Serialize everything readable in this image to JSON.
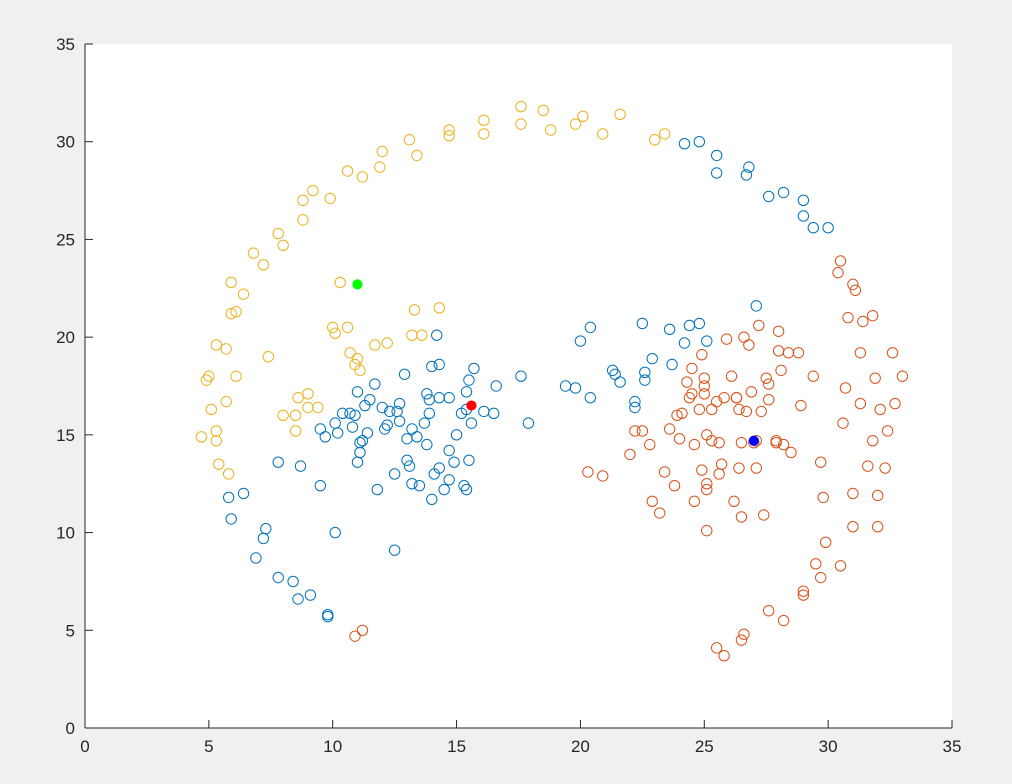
{
  "chart_data": {
    "type": "scatter",
    "title": "",
    "xlabel": "",
    "ylabel": "",
    "xlim": [
      0,
      35
    ],
    "ylim": [
      0,
      35
    ],
    "x_ticks": [
      0,
      5,
      10,
      15,
      20,
      25,
      30,
      35
    ],
    "y_ticks": [
      0,
      5,
      10,
      15,
      20,
      25,
      30,
      35
    ],
    "x_tick_labels": [
      "0",
      "5",
      "10",
      "15",
      "20",
      "25",
      "30",
      "35"
    ],
    "y_tick_labels": [
      "0",
      "5",
      "10",
      "15",
      "20",
      "25",
      "30",
      "35"
    ],
    "grid": false,
    "legend": "none",
    "series": [
      {
        "color": "#0072BD",
        "marker": "open-circle",
        "points": [
          [
            24.2,
            29.9
          ],
          [
            24.8,
            30.0
          ],
          [
            25.5,
            29.3
          ],
          [
            25.5,
            28.4
          ],
          [
            26.8,
            28.7
          ],
          [
            26.7,
            28.3
          ],
          [
            27.6,
            27.2
          ],
          [
            28.2,
            27.4
          ],
          [
            29.0,
            27.0
          ],
          [
            29.0,
            26.2
          ],
          [
            29.4,
            25.6
          ],
          [
            30.0,
            25.6
          ],
          [
            5.8,
            11.8
          ],
          [
            5.9,
            10.7
          ],
          [
            6.4,
            12.0
          ],
          [
            7.2,
            9.7
          ],
          [
            7.3,
            10.2
          ],
          [
            6.9,
            8.7
          ],
          [
            7.8,
            13.6
          ],
          [
            7.8,
            7.7
          ],
          [
            8.4,
            7.5
          ],
          [
            8.6,
            6.6
          ],
          [
            8.7,
            13.4
          ],
          [
            9.1,
            6.8
          ],
          [
            9.5,
            12.4
          ],
          [
            9.8,
            5.8
          ],
          [
            9.8,
            5.7
          ],
          [
            10.1,
            10.0
          ],
          [
            12.5,
            9.1
          ],
          [
            9.5,
            15.3
          ],
          [
            9.7,
            14.9
          ],
          [
            10.1,
            15.6
          ],
          [
            10.2,
            15.1
          ],
          [
            10.4,
            16.1
          ],
          [
            10.7,
            16.1
          ],
          [
            10.8,
            15.4
          ],
          [
            10.9,
            16.0
          ],
          [
            11.0,
            17.2
          ],
          [
            11.0,
            13.6
          ],
          [
            11.1,
            14.6
          ],
          [
            11.1,
            14.1
          ],
          [
            11.2,
            14.7
          ],
          [
            11.3,
            16.5
          ],
          [
            11.4,
            15.1
          ],
          [
            11.5,
            16.8
          ],
          [
            11.7,
            17.6
          ],
          [
            11.8,
            12.2
          ],
          [
            12.0,
            16.4
          ],
          [
            12.1,
            15.3
          ],
          [
            12.2,
            15.5
          ],
          [
            12.3,
            16.2
          ],
          [
            12.5,
            13.0
          ],
          [
            12.6,
            16.2
          ],
          [
            12.7,
            16.6
          ],
          [
            12.7,
            15.7
          ],
          [
            12.9,
            18.1
          ],
          [
            13.0,
            14.8
          ],
          [
            13.0,
            13.7
          ],
          [
            13.1,
            13.4
          ],
          [
            13.2,
            15.3
          ],
          [
            13.2,
            12.5
          ],
          [
            13.4,
            14.9
          ],
          [
            13.5,
            12.4
          ],
          [
            13.7,
            15.6
          ],
          [
            13.8,
            14.5
          ],
          [
            13.8,
            17.1
          ],
          [
            13.9,
            16.8
          ],
          [
            13.9,
            16.1
          ],
          [
            14.0,
            18.5
          ],
          [
            14.0,
            11.7
          ],
          [
            14.1,
            13.0
          ],
          [
            14.2,
            20.1
          ],
          [
            14.3,
            16.9
          ],
          [
            14.3,
            13.3
          ],
          [
            14.3,
            18.6
          ],
          [
            14.5,
            12.2
          ],
          [
            14.7,
            12.7
          ],
          [
            14.7,
            14.2
          ],
          [
            14.7,
            16.9
          ],
          [
            14.9,
            13.6
          ],
          [
            15.0,
            15.0
          ],
          [
            15.2,
            16.1
          ],
          [
            15.3,
            12.4
          ],
          [
            15.4,
            16.3
          ],
          [
            15.4,
            12.2
          ],
          [
            15.4,
            17.2
          ],
          [
            15.5,
            13.7
          ],
          [
            15.5,
            17.8
          ],
          [
            15.6,
            15.6
          ],
          [
            15.7,
            18.4
          ],
          [
            16.1,
            16.2
          ],
          [
            16.5,
            16.1
          ],
          [
            16.6,
            17.5
          ],
          [
            17.6,
            18.0
          ],
          [
            17.9,
            15.6
          ],
          [
            19.4,
            17.5
          ],
          [
            19.8,
            17.4
          ],
          [
            20.0,
            19.8
          ],
          [
            20.4,
            20.5
          ],
          [
            20.4,
            16.9
          ],
          [
            21.3,
            18.3
          ],
          [
            21.4,
            18.1
          ],
          [
            21.6,
            17.7
          ],
          [
            22.2,
            16.7
          ],
          [
            22.2,
            16.4
          ],
          [
            22.5,
            20.7
          ],
          [
            22.6,
            18.2
          ],
          [
            22.6,
            17.8
          ],
          [
            22.9,
            18.9
          ],
          [
            23.6,
            20.4
          ],
          [
            23.7,
            18.6
          ],
          [
            24.2,
            19.7
          ],
          [
            24.4,
            20.6
          ],
          [
            24.8,
            20.7
          ],
          [
            25.1,
            19.8
          ],
          [
            27.1,
            21.6
          ]
        ]
      },
      {
        "color": "#D95319",
        "marker": "open-circle",
        "points": [
          [
            10.9,
            4.7
          ],
          [
            11.2,
            5.0
          ],
          [
            20.3,
            13.1
          ],
          [
            20.9,
            12.9
          ],
          [
            22.0,
            14.0
          ],
          [
            22.2,
            15.2
          ],
          [
            22.5,
            15.2
          ],
          [
            22.8,
            14.5
          ],
          [
            22.9,
            11.6
          ],
          [
            23.2,
            11.0
          ],
          [
            23.4,
            13.1
          ],
          [
            23.6,
            15.3
          ],
          [
            23.8,
            12.4
          ],
          [
            23.9,
            16.0
          ],
          [
            24.0,
            14.8
          ],
          [
            24.1,
            16.1
          ],
          [
            24.3,
            17.7
          ],
          [
            24.4,
            16.9
          ],
          [
            24.5,
            17.1
          ],
          [
            24.5,
            18.4
          ],
          [
            24.6,
            14.5
          ],
          [
            24.6,
            11.6
          ],
          [
            24.8,
            16.3
          ],
          [
            24.9,
            13.2
          ],
          [
            24.9,
            19.1
          ],
          [
            25.0,
            17.9
          ],
          [
            25.0,
            17.5
          ],
          [
            25.0,
            17.1
          ],
          [
            25.1,
            15.0
          ],
          [
            25.1,
            12.5
          ],
          [
            25.1,
            12.2
          ],
          [
            25.1,
            10.1
          ],
          [
            25.3,
            16.3
          ],
          [
            25.3,
            14.7
          ],
          [
            25.5,
            16.7
          ],
          [
            25.6,
            14.6
          ],
          [
            25.6,
            13.0
          ],
          [
            25.7,
            13.5
          ],
          [
            25.8,
            16.9
          ],
          [
            25.9,
            19.9
          ],
          [
            26.1,
            18.0
          ],
          [
            26.2,
            11.6
          ],
          [
            26.3,
            16.9
          ],
          [
            26.3,
            16.9
          ],
          [
            26.4,
            16.3
          ],
          [
            26.4,
            13.3
          ],
          [
            26.5,
            14.6
          ],
          [
            26.5,
            10.8
          ],
          [
            26.6,
            20.0
          ],
          [
            26.7,
            16.2
          ],
          [
            26.8,
            19.6
          ],
          [
            26.9,
            17.2
          ],
          [
            27.0,
            14.6
          ],
          [
            27.1,
            14.7
          ],
          [
            27.1,
            13.3
          ],
          [
            27.2,
            20.6
          ],
          [
            27.3,
            16.2
          ],
          [
            27.4,
            10.9
          ],
          [
            27.5,
            17.9
          ],
          [
            27.6,
            17.6
          ],
          [
            27.6,
            16.8
          ],
          [
            27.9,
            14.7
          ],
          [
            27.9,
            14.6
          ],
          [
            28.0,
            20.3
          ],
          [
            28.0,
            19.3
          ],
          [
            28.1,
            18.3
          ],
          [
            28.2,
            14.5
          ],
          [
            28.4,
            19.2
          ],
          [
            28.5,
            14.1
          ],
          [
            28.8,
            19.2
          ],
          [
            28.9,
            16.5
          ],
          [
            29.4,
            18.0
          ],
          [
            29.7,
            13.6
          ],
          [
            29.8,
            11.8
          ],
          [
            29.9,
            9.5
          ],
          [
            30.6,
            15.6
          ],
          [
            30.7,
            17.4
          ],
          [
            31.0,
            12.0
          ],
          [
            31.0,
            10.3
          ],
          [
            31.3,
            16.6
          ],
          [
            31.6,
            13.4
          ],
          [
            31.8,
            14.7
          ],
          [
            31.9,
            17.9
          ],
          [
            32.0,
            11.9
          ],
          [
            32.0,
            10.3
          ],
          [
            32.1,
            16.3
          ],
          [
            32.3,
            13.3
          ],
          [
            32.4,
            15.2
          ],
          [
            32.6,
            19.2
          ],
          [
            32.7,
            16.6
          ],
          [
            33.0,
            18.0
          ],
          [
            31.3,
            19.2
          ],
          [
            30.8,
            21.0
          ],
          [
            31.4,
            20.8
          ],
          [
            31.8,
            21.1
          ],
          [
            31.1,
            22.4
          ],
          [
            31.0,
            22.7
          ],
          [
            30.5,
            23.9
          ],
          [
            30.4,
            23.3
          ],
          [
            29.5,
            8.4
          ],
          [
            29.7,
            7.7
          ],
          [
            30.5,
            8.3
          ],
          [
            29.0,
            7.0
          ],
          [
            29.0,
            6.8
          ],
          [
            28.2,
            5.5
          ],
          [
            27.6,
            6.0
          ],
          [
            26.5,
            4.5
          ],
          [
            26.6,
            4.8
          ],
          [
            25.5,
            4.1
          ],
          [
            25.8,
            3.7
          ]
        ]
      },
      {
        "color": "#EDB120",
        "marker": "open-circle",
        "points": [
          [
            4.7,
            14.9
          ],
          [
            4.9,
            17.8
          ],
          [
            5.0,
            18.0
          ],
          [
            5.1,
            16.3
          ],
          [
            5.3,
            19.6
          ],
          [
            5.3,
            15.2
          ],
          [
            5.3,
            14.7
          ],
          [
            5.4,
            13.5
          ],
          [
            5.7,
            19.4
          ],
          [
            5.7,
            16.7
          ],
          [
            5.8,
            13.0
          ],
          [
            5.9,
            22.8
          ],
          [
            5.9,
            21.2
          ],
          [
            6.1,
            21.3
          ],
          [
            6.1,
            18.0
          ],
          [
            6.4,
            22.2
          ],
          [
            6.8,
            24.3
          ],
          [
            7.2,
            23.7
          ],
          [
            7.4,
            19.0
          ],
          [
            7.8,
            25.3
          ],
          [
            8.0,
            24.7
          ],
          [
            8.0,
            16.0
          ],
          [
            8.5,
            16.0
          ],
          [
            8.5,
            15.2
          ],
          [
            8.6,
            16.9
          ],
          [
            8.8,
            26.0
          ],
          [
            8.8,
            27.0
          ],
          [
            9.0,
            17.1
          ],
          [
            9.0,
            16.4
          ],
          [
            9.2,
            27.5
          ],
          [
            9.4,
            16.4
          ],
          [
            9.9,
            27.1
          ],
          [
            10.0,
            20.5
          ],
          [
            10.1,
            20.2
          ],
          [
            10.3,
            22.8
          ],
          [
            10.6,
            28.5
          ],
          [
            10.6,
            20.5
          ],
          [
            10.7,
            19.2
          ],
          [
            10.9,
            18.6
          ],
          [
            11.0,
            18.9
          ],
          [
            11.1,
            18.3
          ],
          [
            11.2,
            28.2
          ],
          [
            11.7,
            19.6
          ],
          [
            11.9,
            28.7
          ],
          [
            12.0,
            29.5
          ],
          [
            12.2,
            19.7
          ],
          [
            13.1,
            30.1
          ],
          [
            13.2,
            20.1
          ],
          [
            13.3,
            21.4
          ],
          [
            13.4,
            29.3
          ],
          [
            13.6,
            20.1
          ],
          [
            14.3,
            21.5
          ],
          [
            14.7,
            30.6
          ],
          [
            14.7,
            30.3
          ],
          [
            16.1,
            31.1
          ],
          [
            16.1,
            30.4
          ],
          [
            17.6,
            31.8
          ],
          [
            17.6,
            30.9
          ],
          [
            18.5,
            31.6
          ],
          [
            18.8,
            30.6
          ],
          [
            19.8,
            30.9
          ],
          [
            20.1,
            31.3
          ],
          [
            20.9,
            30.4
          ],
          [
            21.6,
            31.4
          ],
          [
            23.0,
            30.1
          ],
          [
            23.4,
            30.4
          ]
        ]
      }
    ],
    "highlight_points": [
      {
        "color": "#FF0000",
        "x": 15.6,
        "y": 16.5
      },
      {
        "color": "#0000FF",
        "x": 27.0,
        "y": 14.7
      },
      {
        "color": "#00FF00",
        "x": 11.0,
        "y": 22.7
      }
    ]
  }
}
